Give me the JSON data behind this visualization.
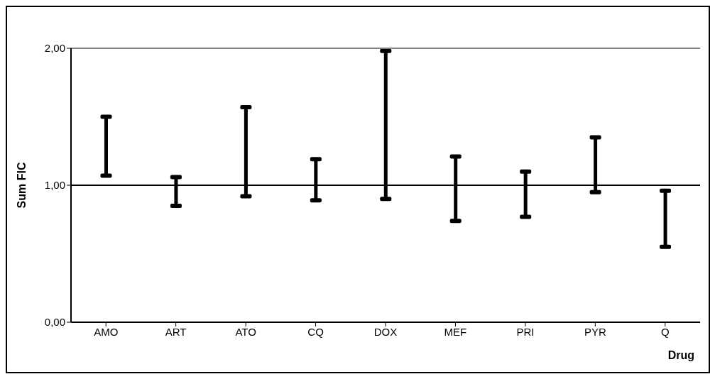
{
  "chart_data": {
    "type": "bar",
    "ylabel": "Sum FIC",
    "xlabel": "Drug",
    "categories": [
      "AMO",
      "ART",
      "ATO",
      "CQ",
      "DOX",
      "MEF",
      "PRI",
      "PYR",
      "Q"
    ],
    "base": [
      1.07,
      0.85,
      0.92,
      0.89,
      0.9,
      0.74,
      0.77,
      0.95,
      0.55
    ],
    "values": [
      0.43,
      0.21,
      0.65,
      0.3,
      1.08,
      0.47,
      0.33,
      0.4,
      0.41
    ],
    "color": "#000000",
    "ylim": [
      0,
      2
    ],
    "yticks": [
      {
        "value": 0,
        "label": "0,00"
      },
      {
        "value": 1,
        "label": "1,00"
      },
      {
        "value": 2,
        "label": "2,00"
      }
    ],
    "ref_lines": [
      {
        "axis": "y",
        "value": 1,
        "color": "#000000"
      },
      {
        "axis": "y",
        "value": 2,
        "color": "#808080"
      }
    ]
  }
}
